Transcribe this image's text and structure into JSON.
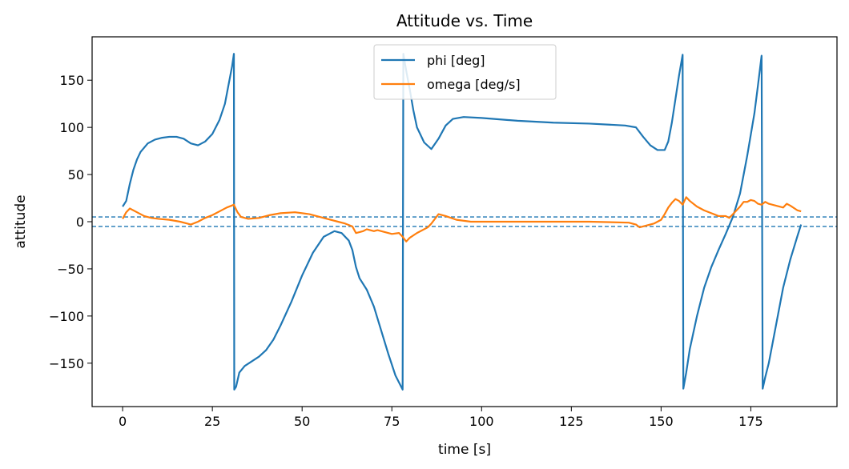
{
  "chart_data": {
    "type": "line",
    "title": "Attitude vs. Time",
    "xlabel": "time [s]",
    "ylabel": "attitude",
    "xlim": [
      -8.5,
      199
    ],
    "ylim": [
      -196,
      196
    ],
    "xticks": [
      0,
      25,
      50,
      75,
      100,
      125,
      150,
      175
    ],
    "yticks": [
      -150,
      -100,
      -50,
      0,
      50,
      100,
      150
    ],
    "ytick_labels": [
      "−150",
      "−100",
      "−50",
      "0",
      "50",
      "100",
      "150"
    ],
    "grid": false,
    "legend": {
      "placement": "upper-center"
    },
    "hlines": [
      {
        "y": 5,
        "color": "#1f77b4",
        "style": "dashed"
      },
      {
        "y": -5,
        "color": "#1f77b4",
        "style": "dashed"
      }
    ],
    "series": [
      {
        "name": "phi [deg]",
        "color": "#1f77b4",
        "points": [
          [
            0,
            16
          ],
          [
            1,
            22
          ],
          [
            2,
            40
          ],
          [
            3,
            55
          ],
          [
            4,
            66
          ],
          [
            5,
            74
          ],
          [
            7,
            83
          ],
          [
            9,
            87
          ],
          [
            11,
            89
          ],
          [
            13,
            90
          ],
          [
            15,
            90
          ],
          [
            17,
            88
          ],
          [
            19,
            83
          ],
          [
            21,
            81
          ],
          [
            23,
            85
          ],
          [
            25,
            93
          ],
          [
            27,
            108
          ],
          [
            28.5,
            125
          ],
          [
            29.5,
            145
          ],
          [
            30.5,
            165
          ],
          [
            31,
            178
          ],
          [
            31.1,
            -178
          ],
          [
            31.6,
            -175
          ],
          [
            32.5,
            -160
          ],
          [
            34,
            -153
          ],
          [
            36,
            -148
          ],
          [
            38,
            -143
          ],
          [
            40,
            -136
          ],
          [
            42,
            -125
          ],
          [
            44,
            -110
          ],
          [
            47,
            -85
          ],
          [
            50,
            -57
          ],
          [
            53,
            -33
          ],
          [
            56,
            -16
          ],
          [
            59,
            -10
          ],
          [
            61,
            -12
          ],
          [
            63,
            -20
          ],
          [
            64,
            -30
          ],
          [
            65,
            -48
          ],
          [
            66,
            -60
          ],
          [
            68,
            -72
          ],
          [
            70,
            -90
          ],
          [
            72,
            -115
          ],
          [
            74,
            -140
          ],
          [
            76,
            -163
          ],
          [
            78,
            -178
          ],
          [
            78.2,
            178
          ],
          [
            79,
            160
          ],
          [
            80,
            140
          ],
          [
            81,
            118
          ],
          [
            82,
            100
          ],
          [
            84,
            84
          ],
          [
            86,
            77
          ],
          [
            88,
            88
          ],
          [
            90,
            102
          ],
          [
            92,
            109
          ],
          [
            95,
            111
          ],
          [
            100,
            110
          ],
          [
            110,
            107
          ],
          [
            120,
            105
          ],
          [
            130,
            104
          ],
          [
            140,
            102
          ],
          [
            143,
            100
          ],
          [
            145,
            90
          ],
          [
            147,
            81
          ],
          [
            149,
            76
          ],
          [
            151,
            76
          ],
          [
            152,
            85
          ],
          [
            153,
            105
          ],
          [
            154,
            130
          ],
          [
            155,
            155
          ],
          [
            156,
            177
          ],
          [
            156.2,
            -177
          ],
          [
            157,
            -160
          ],
          [
            158,
            -135
          ],
          [
            160,
            -100
          ],
          [
            162,
            -70
          ],
          [
            164,
            -48
          ],
          [
            166,
            -30
          ],
          [
            168,
            -13
          ],
          [
            170,
            5
          ],
          [
            172,
            30
          ],
          [
            174,
            70
          ],
          [
            176,
            115
          ],
          [
            177,
            145
          ],
          [
            178,
            176
          ],
          [
            178.3,
            -177
          ],
          [
            179,
            -165
          ],
          [
            180,
            -150
          ],
          [
            182,
            -110
          ],
          [
            184,
            -70
          ],
          [
            186,
            -40
          ],
          [
            188,
            -15
          ],
          [
            189,
            -3
          ]
        ]
      },
      {
        "name": "omega [deg/s]",
        "color": "#ff7f0e",
        "points": [
          [
            0,
            3
          ],
          [
            1,
            10
          ],
          [
            2,
            14
          ],
          [
            4,
            10
          ],
          [
            6,
            6
          ],
          [
            8,
            4
          ],
          [
            10,
            3
          ],
          [
            13,
            2
          ],
          [
            16,
            0
          ],
          [
            18,
            -2
          ],
          [
            19,
            -3
          ],
          [
            21,
            0
          ],
          [
            23,
            4
          ],
          [
            25,
            7
          ],
          [
            27,
            11
          ],
          [
            29,
            15
          ],
          [
            31,
            18
          ],
          [
            32,
            10
          ],
          [
            33,
            5
          ],
          [
            35,
            3
          ],
          [
            38,
            4
          ],
          [
            41,
            7
          ],
          [
            44,
            9
          ],
          [
            48,
            10
          ],
          [
            52,
            8
          ],
          [
            56,
            4
          ],
          [
            60,
            0
          ],
          [
            62,
            -2
          ],
          [
            64,
            -5
          ],
          [
            65,
            -12
          ],
          [
            67,
            -10
          ],
          [
            68,
            -8
          ],
          [
            70,
            -10
          ],
          [
            71,
            -9
          ],
          [
            73,
            -11
          ],
          [
            75,
            -13
          ],
          [
            77,
            -12
          ],
          [
            78,
            -16
          ],
          [
            79,
            -21
          ],
          [
            80,
            -17
          ],
          [
            82,
            -12
          ],
          [
            85,
            -6
          ],
          [
            86,
            -2
          ],
          [
            88,
            8
          ],
          [
            90,
            6
          ],
          [
            93,
            2
          ],
          [
            97,
            0
          ],
          [
            110,
            0
          ],
          [
            130,
            0
          ],
          [
            141,
            -1
          ],
          [
            143,
            -3
          ],
          [
            144,
            -6
          ],
          [
            146,
            -4
          ],
          [
            148,
            -2
          ],
          [
            150,
            2
          ],
          [
            151,
            8
          ],
          [
            152,
            15
          ],
          [
            153,
            20
          ],
          [
            154,
            24
          ],
          [
            155,
            22
          ],
          [
            156,
            18
          ],
          [
            157,
            26
          ],
          [
            158,
            22
          ],
          [
            160,
            16
          ],
          [
            162,
            12
          ],
          [
            164,
            9
          ],
          [
            166,
            6
          ],
          [
            168,
            6
          ],
          [
            169,
            4
          ],
          [
            170,
            8
          ],
          [
            171,
            12
          ],
          [
            172,
            16
          ],
          [
            173,
            21
          ],
          [
            174,
            21
          ],
          [
            175,
            23
          ],
          [
            176,
            22
          ],
          [
            177,
            19
          ],
          [
            178,
            18
          ],
          [
            179,
            21
          ],
          [
            180,
            19
          ],
          [
            182,
            17
          ],
          [
            184,
            15
          ],
          [
            185,
            19
          ],
          [
            186,
            17
          ],
          [
            188,
            12
          ],
          [
            189,
            11
          ]
        ]
      }
    ]
  }
}
